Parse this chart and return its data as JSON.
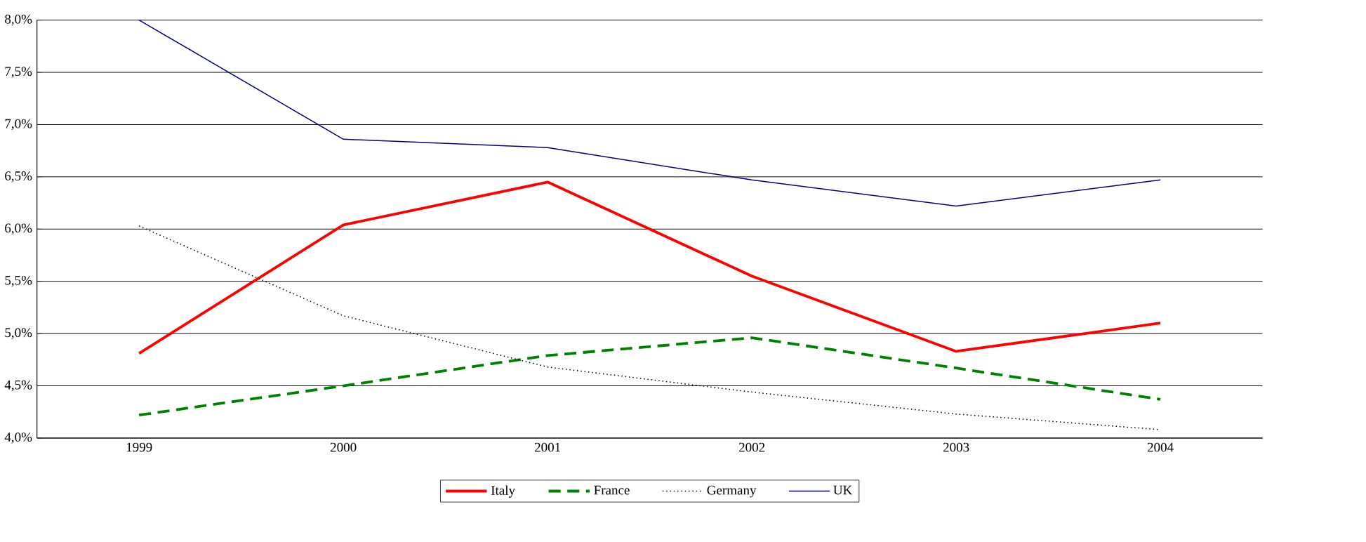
{
  "chart_data": {
    "type": "line",
    "categories": [
      "1999",
      "2000",
      "2001",
      "2002",
      "2003",
      "2004"
    ],
    "series": [
      {
        "name": "Italy",
        "color": "#ff0000",
        "line_style": "solid",
        "values": [
          4.81,
          6.04,
          6.45,
          5.55,
          4.83,
          5.1
        ]
      },
      {
        "name": "France",
        "color": "#008000",
        "line_style": "dashed",
        "values": [
          4.22,
          4.5,
          4.79,
          4.96,
          4.67,
          4.37
        ]
      },
      {
        "name": "Germany",
        "color": "#000000",
        "line_style": "dotted",
        "values": [
          6.03,
          5.17,
          4.68,
          4.44,
          4.23,
          4.08
        ]
      },
      {
        "name": "UK",
        "color": "#000080",
        "line_style": "solid",
        "values": [
          8.0,
          6.86,
          6.78,
          6.47,
          6.22,
          6.47
        ]
      }
    ],
    "ylim": [
      4.0,
      8.0
    ],
    "yticks": [
      {
        "value": 4.0,
        "label": "4,0%"
      },
      {
        "value": 4.5,
        "label": "4,5%"
      },
      {
        "value": 5.0,
        "label": "5,0%"
      },
      {
        "value": 5.5,
        "label": "5,5%"
      },
      {
        "value": 6.0,
        "label": "6,0%"
      },
      {
        "value": 6.5,
        "label": "6,5%"
      },
      {
        "value": 7.0,
        "label": "7,0%"
      },
      {
        "value": 7.5,
        "label": "7,5%"
      },
      {
        "value": 8.0,
        "label": "8,0%"
      }
    ],
    "grid": "y",
    "legend": "bottom",
    "marker": "none"
  }
}
